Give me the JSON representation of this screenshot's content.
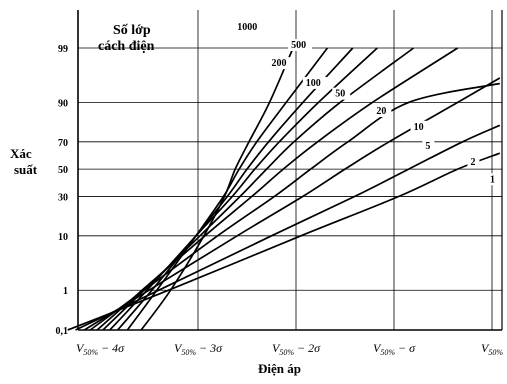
{
  "chart_data": {
    "type": "line",
    "ylabel_line1": "Xác",
    "ylabel_line2": "suất",
    "xlabel": "Điện áp",
    "legend_title_line1": "Số lớp",
    "legend_title_line2": "cách điện",
    "y_scale": "probability",
    "y_ticks": [
      0.1,
      1,
      10,
      30,
      50,
      70,
      90,
      99
    ],
    "y_tick_labels": [
      "0,1",
      "1",
      "10",
      "30",
      "50",
      "70",
      "90",
      "99"
    ],
    "x_ticks": [
      -4,
      -3,
      -2,
      -1,
      0
    ],
    "x_tick_labels": [
      {
        "base": "V",
        "sub": "50%",
        "tail": " − 4σ"
      },
      {
        "base": "V",
        "sub": "50%",
        "tail": " − 3σ"
      },
      {
        "base": "V",
        "sub": "50%",
        "tail": " − 2σ"
      },
      {
        "base": "V",
        "sub": "50%",
        "tail": " − σ"
      },
      {
        "base": "V",
        "sub": "50%",
        "tail": ""
      }
    ],
    "xlim": [
      -4.5,
      0.1
    ],
    "grid": true,
    "series": [
      {
        "name": "1000",
        "points": [
          [
            -3.58,
            0.1
          ],
          [
            -3.28,
            1
          ],
          [
            -2.94,
            10
          ],
          [
            -2.73,
            30
          ],
          [
            -2.62,
            50
          ],
          [
            -2.48,
            70
          ],
          [
            -2.27,
            90
          ],
          [
            -2.03,
            99
          ]
        ]
      },
      {
        "name": "500",
        "points": [
          [
            -3.72,
            0.1
          ],
          [
            -3.42,
            1
          ],
          [
            -3.02,
            10
          ],
          [
            -2.74,
            30
          ],
          [
            -2.58,
            50
          ],
          [
            -2.4,
            70
          ],
          [
            -2.1,
            90
          ],
          [
            -1.68,
            99
          ]
        ]
      },
      {
        "name": "200",
        "points": [
          [
            -3.82,
            0.1
          ],
          [
            -3.47,
            1
          ],
          [
            -3.02,
            10
          ],
          [
            -2.7,
            30
          ],
          [
            -2.5,
            50
          ],
          [
            -2.28,
            70
          ],
          [
            -1.93,
            90
          ],
          [
            -1.42,
            99
          ]
        ]
      },
      {
        "name": "100",
        "points": [
          [
            -3.9,
            0.1
          ],
          [
            -3.52,
            1
          ],
          [
            -3.02,
            10
          ],
          [
            -2.65,
            30
          ],
          [
            -2.42,
            50
          ],
          [
            -2.17,
            70
          ],
          [
            -1.77,
            90
          ],
          [
            -1.17,
            99
          ]
        ]
      },
      {
        "name": "50",
        "points": [
          [
            -3.97,
            0.1
          ],
          [
            -3.55,
            1
          ],
          [
            -2.98,
            10
          ],
          [
            -2.57,
            30
          ],
          [
            -2.3,
            50
          ],
          [
            -2.02,
            70
          ],
          [
            -1.55,
            90
          ],
          [
            -0.8,
            99
          ]
        ]
      },
      {
        "name": "20",
        "points": [
          [
            -4.03,
            0.1
          ],
          [
            -3.57,
            1
          ],
          [
            -2.93,
            10
          ],
          [
            -2.45,
            30
          ],
          [
            -2.13,
            50
          ],
          [
            -1.78,
            70
          ],
          [
            -1.22,
            90
          ],
          [
            -0.35,
            99
          ]
        ]
      },
      {
        "name": "10",
        "points": [
          [
            -4.1,
            0.1
          ],
          [
            -3.55,
            1
          ],
          [
            -2.8,
            10
          ],
          [
            -2.22,
            30
          ],
          [
            -1.85,
            50
          ],
          [
            -1.47,
            70
          ],
          [
            -0.85,
            90
          ],
          [
            0.08,
            95
          ]
        ]
      },
      {
        "name": "5",
        "points": [
          [
            -4.16,
            0.1
          ],
          [
            -3.5,
            1
          ],
          [
            -2.6,
            10
          ],
          [
            -1.93,
            30
          ],
          [
            -1.5,
            50
          ],
          [
            -1.05,
            70
          ],
          [
            -0.35,
            90
          ],
          [
            0.08,
            96
          ]
        ]
      },
      {
        "name": "2",
        "points": [
          [
            -4.25,
            0.1
          ],
          [
            -3.4,
            1
          ],
          [
            -2.25,
            10
          ],
          [
            -1.4,
            30
          ],
          [
            -0.85,
            50
          ],
          [
            -0.3,
            70
          ],
          [
            0.08,
            80
          ]
        ]
      },
      {
        "name": "1",
        "points": [
          [
            -4.33,
            0.1
          ],
          [
            -3.3,
            1
          ],
          [
            -1.95,
            10
          ],
          [
            -0.95,
            30
          ],
          [
            -0.35,
            50
          ],
          [
            0.08,
            62
          ]
        ]
      }
    ],
    "series_label_positions": [
      {
        "name": "1000",
        "x": -2.6,
        "y": 99.62
      },
      {
        "name": "500",
        "x": -2.05,
        "y": 99.0
      },
      {
        "name": "200",
        "x": -2.25,
        "y": 97.6
      },
      {
        "name": "100",
        "x": -1.9,
        "y": 94.5
      },
      {
        "name": "50",
        "x": -1.6,
        "y": 91.8
      },
      {
        "name": "20",
        "x": -1.18,
        "y": 85.5
      },
      {
        "name": "10",
        "x": -0.8,
        "y": 77.5
      },
      {
        "name": "5",
        "x": -0.68,
        "y": 65.0
      },
      {
        "name": "2",
        "x": -0.22,
        "y": 53.0
      },
      {
        "name": "1",
        "x": -0.02,
        "y": 40.0
      }
    ]
  }
}
